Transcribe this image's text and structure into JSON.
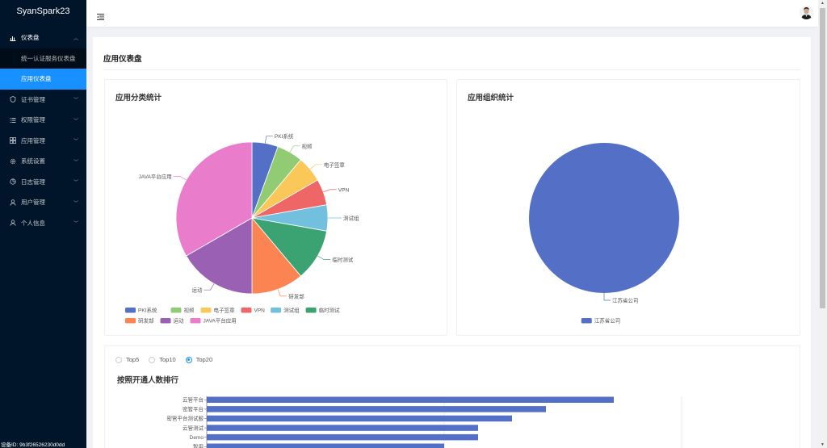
{
  "app": {
    "logo": "SyanSpark23"
  },
  "sidebar": {
    "items": [
      {
        "label": "仪表盘",
        "icon": "dashboard-icon",
        "expanded": true,
        "children": [
          {
            "label": "统一认证服务仪表盘",
            "active": false
          },
          {
            "label": "应用仪表盘",
            "active": true
          }
        ]
      },
      {
        "label": "证书管理",
        "icon": "safety-icon"
      },
      {
        "label": "权限管理",
        "icon": "list-icon"
      },
      {
        "label": "应用管理",
        "icon": "appstore-icon"
      },
      {
        "label": "系统设置",
        "icon": "setting-icon"
      },
      {
        "label": "日志管理",
        "icon": "pie-icon"
      },
      {
        "label": "用户管理",
        "icon": "user-icon"
      },
      {
        "label": "个人信息",
        "icon": "user-icon"
      }
    ],
    "device_id": "设备ID: 9b3f26526230d0dd"
  },
  "page": {
    "title": "应用仪表盘"
  },
  "category_card": {
    "title": "应用分类统计"
  },
  "org_card": {
    "title": "应用组织统计"
  },
  "rank_card": {
    "title": "按照开通人数排行",
    "options": [
      {
        "label": "Top5",
        "checked": false
      },
      {
        "label": "Top10",
        "checked": false
      },
      {
        "label": "Top20",
        "checked": true
      }
    ]
  },
  "chart_data": [
    {
      "type": "pie",
      "title": "应用分类统计",
      "legend_position": "bottom",
      "slices": [
        {
          "name": "PKI系统",
          "value": 1,
          "color": "#5470c6"
        },
        {
          "name": "视频",
          "value": 1,
          "color": "#91cc75"
        },
        {
          "name": "电子签章",
          "value": 1,
          "color": "#fac858"
        },
        {
          "name": "VPN",
          "value": 1,
          "color": "#ee6666"
        },
        {
          "name": "测试组",
          "value": 1,
          "color": "#73c0de"
        },
        {
          "name": "临时测试",
          "value": 2,
          "color": "#3ba272"
        },
        {
          "name": "研发部",
          "value": 2,
          "color": "#fc8452"
        },
        {
          "name": "运动",
          "value": 3,
          "color": "#9a60b4"
        },
        {
          "name": "JAVA平台应用",
          "value": 6,
          "color": "#ea7ccc"
        }
      ]
    },
    {
      "type": "pie",
      "title": "应用组织统计",
      "legend_position": "bottom",
      "slices": [
        {
          "name": "江苏省公司",
          "value": 1,
          "color": "#5470c6"
        }
      ]
    },
    {
      "type": "bar",
      "orientation": "horizontal",
      "title": "按照开通人数排行",
      "categories": [
        "云管平台",
        "密管平台",
        "密管平台测试服",
        "云管测试",
        "Demo",
        "智用"
      ],
      "values": [
        12,
        10,
        9,
        8,
        8,
        7
      ],
      "xlim": [
        0,
        14
      ],
      "color": "#5470c6"
    }
  ]
}
